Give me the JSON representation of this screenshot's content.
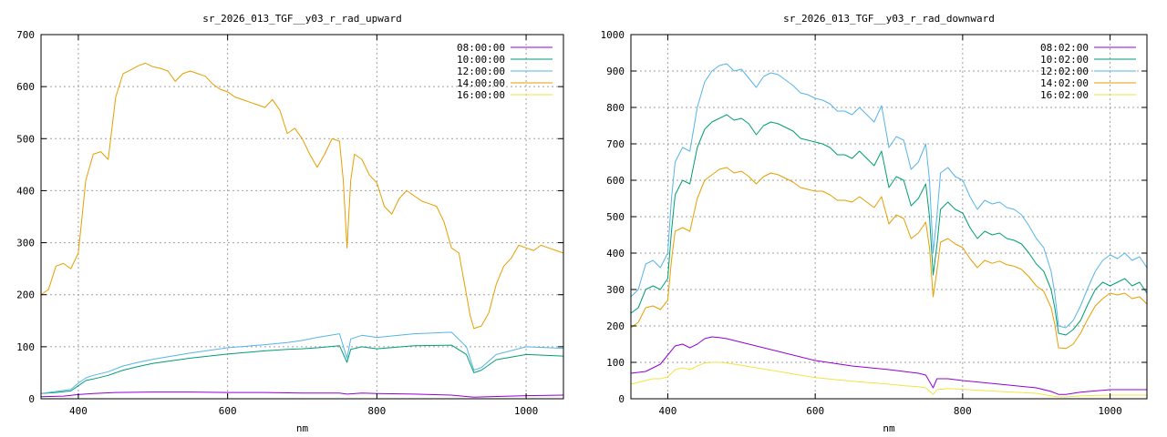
{
  "chart_data": [
    {
      "type": "line",
      "title": "sr_2026_013_TGF__y03_r_rad_upward",
      "xlabel": "nm",
      "ylabel": "",
      "xlim": [
        350,
        1050
      ],
      "ylim": [
        0,
        700
      ],
      "xticks": [
        400,
        600,
        800,
        1000
      ],
      "yticks": [
        0,
        100,
        200,
        300,
        400,
        500,
        600,
        700
      ],
      "grid": true,
      "legend_position": "top-right",
      "series": [
        {
          "name": "08:00:00",
          "color": "#9400d3",
          "x": [
            350,
            380,
            400,
            420,
            450,
            500,
            550,
            600,
            650,
            700,
            750,
            760,
            780,
            800,
            850,
            900,
            930,
            950,
            1000,
            1050
          ],
          "y": [
            4,
            5,
            8,
            10,
            12,
            13,
            13,
            12,
            12,
            11,
            11,
            9,
            11,
            10,
            9,
            7,
            3,
            4,
            6,
            7
          ]
        },
        {
          "name": "10:00:00",
          "color": "#009e73",
          "x": [
            350,
            370,
            390,
            400,
            410,
            420,
            440,
            460,
            480,
            500,
            550,
            600,
            650,
            680,
            700,
            720,
            750,
            760,
            765,
            780,
            800,
            850,
            900,
            920,
            930,
            940,
            960,
            1000,
            1050
          ],
          "y": [
            10,
            12,
            15,
            25,
            35,
            38,
            45,
            55,
            62,
            68,
            78,
            86,
            92,
            95,
            96,
            98,
            102,
            70,
            95,
            100,
            96,
            102,
            103,
            85,
            50,
            55,
            75,
            85,
            82
          ]
        },
        {
          "name": "12:00:00",
          "color": "#56b4e9",
          "x": [
            350,
            370,
            390,
            400,
            410,
            420,
            440,
            460,
            480,
            500,
            550,
            600,
            650,
            680,
            700,
            720,
            750,
            760,
            765,
            780,
            800,
            850,
            900,
            920,
            930,
            940,
            960,
            1000,
            1050
          ],
          "y": [
            10,
            14,
            18,
            30,
            40,
            45,
            52,
            63,
            70,
            76,
            88,
            98,
            104,
            108,
            112,
            118,
            125,
            78,
            115,
            122,
            118,
            125,
            128,
            100,
            55,
            60,
            85,
            100,
            97
          ]
        },
        {
          "name": "14:00:00",
          "color": "#e69f00",
          "x": [
            350,
            360,
            370,
            380,
            390,
            400,
            410,
            420,
            430,
            440,
            450,
            460,
            470,
            480,
            490,
            500,
            510,
            520,
            530,
            540,
            550,
            560,
            570,
            580,
            590,
            600,
            610,
            620,
            630,
            640,
            650,
            660,
            670,
            680,
            690,
            700,
            710,
            720,
            730,
            740,
            750,
            755,
            760,
            765,
            770,
            780,
            790,
            800,
            810,
            820,
            830,
            840,
            850,
            860,
            870,
            880,
            890,
            900,
            910,
            920,
            925,
            930,
            940,
            950,
            960,
            970,
            980,
            990,
            1000,
            1010,
            1020,
            1030,
            1040,
            1050
          ],
          "y": [
            200,
            210,
            255,
            260,
            250,
            280,
            420,
            470,
            475,
            460,
            580,
            625,
            632,
            640,
            645,
            638,
            635,
            630,
            610,
            625,
            630,
            625,
            620,
            605,
            595,
            590,
            580,
            575,
            570,
            565,
            560,
            575,
            555,
            510,
            520,
            500,
            470,
            445,
            470,
            500,
            495,
            420,
            290,
            420,
            470,
            460,
            430,
            415,
            370,
            355,
            385,
            400,
            390,
            380,
            375,
            370,
            340,
            290,
            280,
            200,
            160,
            135,
            140,
            165,
            220,
            255,
            270,
            295,
            290,
            285,
            295,
            290,
            285,
            280
          ]
        },
        {
          "name": "16:00:00",
          "color": "#f0e442",
          "x": [
            350,
            400,
            500,
            600,
            700,
            800,
            900,
            1000,
            1050
          ],
          "y": [
            0,
            0,
            0,
            0,
            0,
            0,
            0,
            0,
            0
          ]
        }
      ]
    },
    {
      "type": "line",
      "title": "sr_2026_013_TGF__y03_r_rad_downward",
      "xlabel": "nm",
      "ylabel": "",
      "xlim": [
        350,
        1050
      ],
      "ylim": [
        0,
        1000
      ],
      "xticks": [
        400,
        600,
        800,
        1000
      ],
      "yticks": [
        0,
        100,
        200,
        300,
        400,
        500,
        600,
        700,
        800,
        900,
        1000
      ],
      "grid": true,
      "legend_position": "top-right",
      "series": [
        {
          "name": "08:02:00",
          "color": "#9400d3",
          "x": [
            350,
            370,
            380,
            390,
            400,
            410,
            420,
            430,
            440,
            450,
            460,
            470,
            480,
            500,
            550,
            600,
            650,
            700,
            720,
            740,
            750,
            760,
            765,
            780,
            800,
            850,
            900,
            920,
            930,
            940,
            960,
            1000,
            1050
          ],
          "y": [
            70,
            75,
            85,
            95,
            120,
            145,
            150,
            140,
            150,
            165,
            170,
            168,
            165,
            155,
            130,
            105,
            90,
            80,
            75,
            70,
            65,
            30,
            55,
            55,
            50,
            40,
            30,
            20,
            12,
            12,
            18,
            25,
            25
          ]
        },
        {
          "name": "10:02:00",
          "color": "#009e73",
          "x": [
            350,
            360,
            370,
            380,
            390,
            400,
            405,
            410,
            420,
            430,
            440,
            450,
            460,
            470,
            480,
            490,
            500,
            510,
            520,
            530,
            540,
            550,
            560,
            570,
            580,
            590,
            600,
            610,
            620,
            630,
            640,
            650,
            660,
            670,
            680,
            690,
            700,
            710,
            720,
            730,
            740,
            750,
            755,
            760,
            765,
            770,
            780,
            790,
            800,
            810,
            820,
            830,
            840,
            850,
            860,
            870,
            880,
            890,
            900,
            910,
            920,
            925,
            930,
            940,
            950,
            960,
            970,
            980,
            990,
            1000,
            1010,
            1020,
            1030,
            1040,
            1050
          ],
          "y": [
            235,
            250,
            300,
            310,
            300,
            330,
            460,
            560,
            600,
            590,
            690,
            740,
            760,
            770,
            780,
            765,
            770,
            755,
            725,
            750,
            760,
            755,
            745,
            735,
            715,
            710,
            705,
            700,
            690,
            670,
            670,
            660,
            680,
            660,
            640,
            680,
            580,
            610,
            600,
            530,
            550,
            590,
            500,
            340,
            420,
            520,
            540,
            520,
            510,
            470,
            440,
            460,
            450,
            455,
            440,
            435,
            425,
            400,
            370,
            350,
            300,
            250,
            180,
            175,
            190,
            215,
            260,
            300,
            320,
            310,
            320,
            330,
            310,
            320,
            290
          ]
        },
        {
          "name": "12:02:00",
          "color": "#56b4e9",
          "x": [
            350,
            360,
            370,
            380,
            390,
            400,
            405,
            410,
            420,
            430,
            440,
            450,
            460,
            470,
            480,
            490,
            500,
            510,
            520,
            530,
            540,
            550,
            560,
            570,
            580,
            590,
            600,
            610,
            620,
            630,
            640,
            650,
            660,
            670,
            680,
            690,
            700,
            710,
            720,
            730,
            740,
            750,
            755,
            760,
            765,
            770,
            780,
            790,
            800,
            810,
            820,
            830,
            840,
            850,
            860,
            870,
            880,
            890,
            900,
            910,
            920,
            925,
            930,
            940,
            950,
            960,
            970,
            980,
            990,
            1000,
            1010,
            1020,
            1030,
            1040,
            1050
          ],
          "y": [
            280,
            300,
            370,
            380,
            360,
            400,
            550,
            650,
            690,
            680,
            800,
            870,
            900,
            915,
            920,
            900,
            905,
            880,
            855,
            885,
            895,
            890,
            875,
            860,
            840,
            835,
            825,
            820,
            810,
            790,
            790,
            780,
            800,
            780,
            760,
            805,
            690,
            720,
            710,
            630,
            650,
            700,
            600,
            400,
            500,
            620,
            635,
            610,
            600,
            555,
            520,
            545,
            535,
            540,
            525,
            520,
            505,
            475,
            440,
            415,
            350,
            290,
            200,
            195,
            215,
            255,
            305,
            350,
            380,
            395,
            385,
            400,
            380,
            390,
            360
          ]
        },
        {
          "name": "14:02:00",
          "color": "#e69f00",
          "x": [
            350,
            360,
            370,
            380,
            390,
            400,
            405,
            410,
            420,
            430,
            440,
            450,
            460,
            470,
            480,
            490,
            500,
            510,
            520,
            530,
            540,
            550,
            560,
            570,
            580,
            590,
            600,
            610,
            620,
            630,
            640,
            650,
            660,
            670,
            680,
            690,
            700,
            710,
            720,
            730,
            740,
            750,
            755,
            760,
            765,
            770,
            780,
            790,
            800,
            810,
            820,
            830,
            840,
            850,
            860,
            870,
            880,
            890,
            900,
            910,
            920,
            925,
            930,
            940,
            950,
            960,
            970,
            980,
            990,
            1000,
            1010,
            1020,
            1030,
            1040,
            1050
          ],
          "y": [
            195,
            210,
            250,
            255,
            245,
            270,
            380,
            460,
            470,
            460,
            550,
            600,
            615,
            630,
            635,
            620,
            625,
            610,
            590,
            610,
            620,
            615,
            605,
            595,
            580,
            575,
            570,
            570,
            560,
            545,
            545,
            540,
            555,
            540,
            525,
            555,
            480,
            505,
            495,
            440,
            455,
            485,
            415,
            280,
            350,
            430,
            440,
            425,
            415,
            385,
            360,
            380,
            372,
            378,
            368,
            364,
            355,
            335,
            310,
            295,
            250,
            205,
            140,
            138,
            150,
            180,
            220,
            255,
            275,
            290,
            285,
            290,
            275,
            280,
            260
          ]
        },
        {
          "name": "16:02:00",
          "color": "#f0e442",
          "x": [
            350,
            360,
            370,
            380,
            390,
            400,
            410,
            420,
            430,
            440,
            450,
            460,
            470,
            480,
            500,
            550,
            600,
            650,
            700,
            720,
            740,
            750,
            760,
            765,
            780,
            800,
            850,
            900,
            920,
            930,
            940,
            960,
            1000,
            1050
          ],
          "y": [
            40,
            45,
            50,
            55,
            55,
            60,
            80,
            85,
            80,
            90,
            98,
            100,
            100,
            98,
            92,
            75,
            58,
            48,
            40,
            36,
            33,
            30,
            12,
            25,
            28,
            26,
            20,
            15,
            8,
            5,
            5,
            8,
            10,
            10
          ]
        }
      ]
    }
  ]
}
